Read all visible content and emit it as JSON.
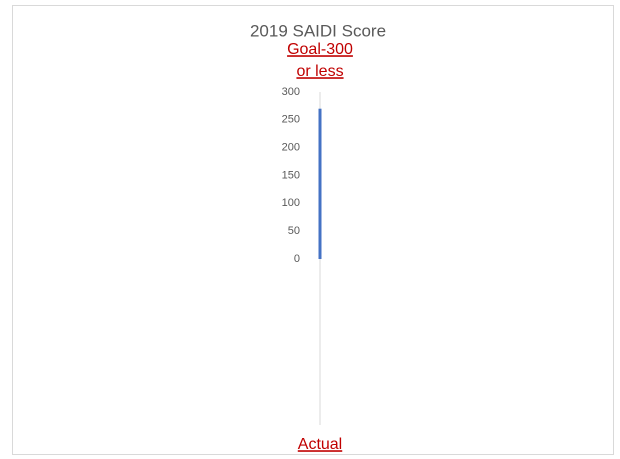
{
  "chart_data": {
    "type": "bar",
    "title": "2019 SAIDI Score",
    "annotation_lines": [
      "Goal-300",
      "or less"
    ],
    "categories": [
      "Actual"
    ],
    "values": [
      270
    ],
    "color": "#4472c4",
    "ylim": [
      0,
      300
    ],
    "yticks": [
      0,
      50,
      100,
      150,
      200,
      250,
      300
    ],
    "grid": false
  }
}
